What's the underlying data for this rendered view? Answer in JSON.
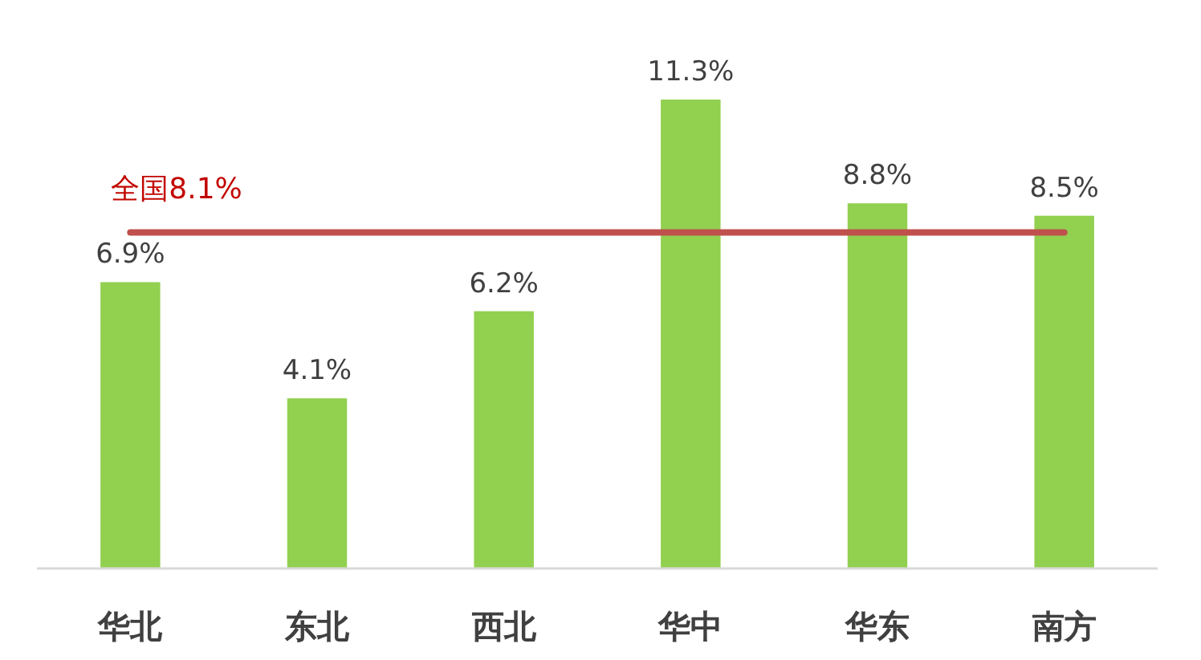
{
  "chart_data": {
    "type": "bar",
    "categories": [
      "华北",
      "东北",
      "西北",
      "华中",
      "华东",
      "南方"
    ],
    "series": [
      {
        "color": "#92d050",
        "values": [
          6.9,
          4.1,
          6.2,
          11.3,
          8.8,
          8.5
        ],
        "value_labels": [
          "6.9%",
          "4.1%",
          "6.2%",
          "11.3%",
          "8.8%",
          "8.5%"
        ]
      }
    ],
    "tick_labels": "x",
    "ref_lines": [
      {
        "axis": "y",
        "value": 8.1,
        "label": "全国8.1%",
        "color": "#c0504d"
      }
    ]
  }
}
